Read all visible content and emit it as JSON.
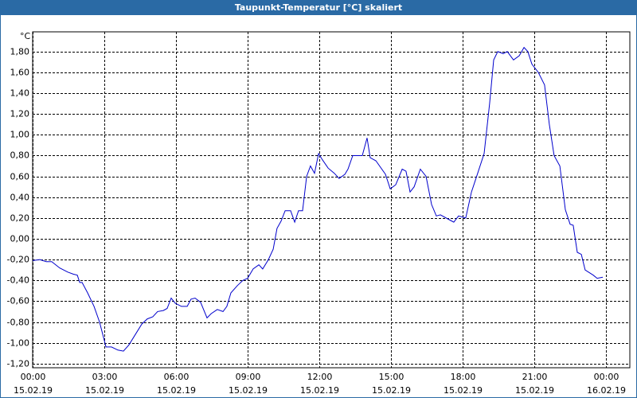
{
  "chart_data": {
    "type": "line",
    "title": "Taupunkt-Temperatur [°C] skaliert",
    "y_label": "°C",
    "color": "#0000cc",
    "grid": true,
    "x": [
      0,
      0.3,
      0.57,
      0.8,
      1.13,
      1.47,
      1.7,
      1.87,
      1.97,
      2.07,
      2.3,
      2.57,
      2.8,
      3.07,
      3.3,
      3.57,
      3.8,
      4.03,
      4.3,
      4.57,
      4.8,
      5.03,
      5.23,
      5.47,
      5.63,
      5.8,
      5.97,
      6.23,
      6.47,
      6.63,
      6.8,
      7.03,
      7.3,
      7.47,
      7.73,
      7.97,
      8.13,
      8.3,
      8.57,
      8.8,
      9.0,
      9.23,
      9.47,
      9.63,
      9.87,
      10.07,
      10.23,
      10.4,
      10.57,
      10.8,
      10.97,
      11.13,
      11.3,
      11.47,
      11.63,
      11.8,
      11.97,
      12.13,
      12.37,
      12.63,
      12.83,
      13.07,
      13.2,
      13.4,
      13.8,
      14.0,
      14.13,
      14.37,
      14.77,
      14.97,
      15.2,
      15.47,
      15.63,
      15.8,
      15.97,
      16.23,
      16.47,
      16.7,
      16.9,
      17.07,
      17.47,
      17.63,
      17.83,
      18.13,
      18.37,
      18.63,
      18.9,
      19.13,
      19.3,
      19.47,
      19.7,
      19.87,
      20.13,
      20.37,
      20.57,
      20.73,
      20.9,
      21.17,
      21.43,
      21.63,
      21.83,
      22.07,
      22.3,
      22.5,
      22.63,
      22.8,
      22.97,
      23.13,
      23.47,
      23.63,
      23.87
    ],
    "values": [
      -0.21,
      -0.2,
      -0.22,
      -0.22,
      -0.28,
      -0.32,
      -0.34,
      -0.35,
      -0.42,
      -0.42,
      -0.52,
      -0.65,
      -0.8,
      -1.04,
      -1.04,
      -1.07,
      -1.08,
      -1.02,
      -0.92,
      -0.82,
      -0.77,
      -0.75,
      -0.7,
      -0.69,
      -0.67,
      -0.57,
      -0.62,
      -0.65,
      -0.65,
      -0.58,
      -0.57,
      -0.61,
      -0.76,
      -0.72,
      -0.68,
      -0.7,
      -0.65,
      -0.52,
      -0.45,
      -0.4,
      -0.38,
      -0.29,
      -0.25,
      -0.29,
      -0.2,
      -0.1,
      0.1,
      0.17,
      0.27,
      0.27,
      0.16,
      0.27,
      0.27,
      0.6,
      0.7,
      0.63,
      0.82,
      0.76,
      0.68,
      0.63,
      0.58,
      0.62,
      0.67,
      0.8,
      0.8,
      0.97,
      0.78,
      0.75,
      0.62,
      0.48,
      0.52,
      0.67,
      0.65,
      0.45,
      0.5,
      0.67,
      0.6,
      0.33,
      0.22,
      0.23,
      0.18,
      0.16,
      0.22,
      0.2,
      0.45,
      0.63,
      0.82,
      1.3,
      1.72,
      1.8,
      1.78,
      1.8,
      1.72,
      1.76,
      1.84,
      1.8,
      1.68,
      1.6,
      1.48,
      1.1,
      0.8,
      0.7,
      0.28,
      0.14,
      0.13,
      -0.13,
      -0.15,
      -0.3,
      -0.35,
      -0.38,
      -0.37
    ],
    "xlim": [
      0,
      25
    ],
    "xticks": [
      {
        "value": 0,
        "label": [
          "00:00",
          "15.02.19"
        ]
      },
      {
        "value": 3,
        "label": [
          "03:00",
          "15.02.19"
        ]
      },
      {
        "value": 6,
        "label": [
          "06:00",
          "15.02.19"
        ]
      },
      {
        "value": 9,
        "label": [
          "09:00",
          "15.02.19"
        ]
      },
      {
        "value": 12,
        "label": [
          "12:00",
          "15.02.19"
        ]
      },
      {
        "value": 15,
        "label": [
          "15:00",
          "15.02.19"
        ]
      },
      {
        "value": 18,
        "label": [
          "18:00",
          "15.02.19"
        ]
      },
      {
        "value": 21,
        "label": [
          "21:00",
          "15.02.19"
        ]
      },
      {
        "value": 24,
        "label": [
          "00:00",
          "16.02.19"
        ]
      }
    ],
    "ylim": [
      -1.24,
      1.99
    ],
    "yticks": [
      {
        "value": -1.2,
        "label": "-1,20"
      },
      {
        "value": -1.0,
        "label": "-1,00"
      },
      {
        "value": -0.8,
        "label": "-0,80"
      },
      {
        "value": -0.6,
        "label": "-0,60"
      },
      {
        "value": -0.4,
        "label": "-0,40"
      },
      {
        "value": -0.2,
        "label": "-0,20"
      },
      {
        "value": 0,
        "label": "0,00"
      },
      {
        "value": 0.2,
        "label": "0,20"
      },
      {
        "value": 0.4,
        "label": "0,40"
      },
      {
        "value": 0.6,
        "label": "0,60"
      },
      {
        "value": 0.8,
        "label": "0,80"
      },
      {
        "value": 1.0,
        "label": "1,00"
      },
      {
        "value": 1.2,
        "label": "1,20"
      },
      {
        "value": 1.4,
        "label": "1,40"
      },
      {
        "value": 1.6,
        "label": "1,60"
      },
      {
        "value": 1.8,
        "label": "1,80"
      }
    ]
  }
}
